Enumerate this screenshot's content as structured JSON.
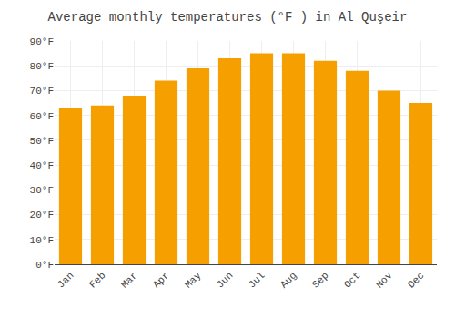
{
  "chart_data": {
    "type": "bar",
    "title": "Average monthly temperatures (°F ) in Al Quşeir",
    "categories": [
      "Jan",
      "Feb",
      "Mar",
      "Apr",
      "May",
      "Jun",
      "Jul",
      "Aug",
      "Sep",
      "Oct",
      "Nov",
      "Dec"
    ],
    "values": [
      63,
      64,
      68,
      74,
      79,
      83,
      85,
      85,
      82,
      78,
      70,
      65
    ],
    "color": "#F5A000",
    "ylim": [
      0,
      90
    ],
    "yticks": [
      {
        "value": 0,
        "label": "0°F"
      },
      {
        "value": 10,
        "label": "10°F"
      },
      {
        "value": 20,
        "label": "20°F"
      },
      {
        "value": 30,
        "label": "30°F"
      },
      {
        "value": 40,
        "label": "40°F"
      },
      {
        "value": 50,
        "label": "50°F"
      },
      {
        "value": 60,
        "label": "60°F"
      },
      {
        "value": 70,
        "label": "70°F"
      },
      {
        "value": 80,
        "label": "80°F"
      },
      {
        "value": 90,
        "label": "90°F"
      }
    ],
    "grid": true
  }
}
